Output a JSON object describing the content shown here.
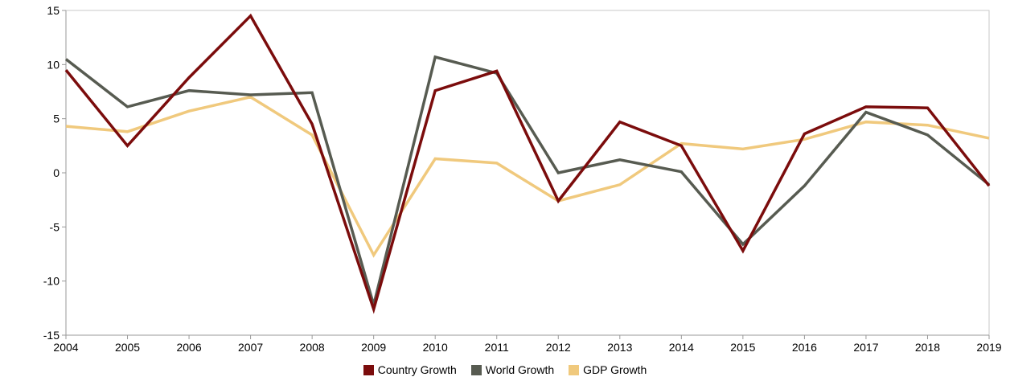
{
  "chart_data": {
    "type": "line",
    "title": "",
    "xlabel": "",
    "ylabel": "",
    "x": [
      "2004",
      "2005",
      "2006",
      "2007",
      "2008",
      "2009",
      "2010",
      "2011",
      "2012",
      "2013",
      "2014",
      "2015",
      "2016",
      "2017",
      "2018",
      "2019"
    ],
    "ylim": [
      -15,
      15
    ],
    "yticks": [
      "15",
      "10",
      "5",
      "0",
      "-5",
      "-10",
      "-15"
    ],
    "grid": false,
    "legend_position": "bottom",
    "series": [
      {
        "name": "Country Growth",
        "color": "#7b0c0c",
        "values": [
          9.5,
          2.5,
          8.8,
          14.5,
          4.5,
          -12.6,
          7.6,
          9.4,
          -2.6,
          4.7,
          2.5,
          -7.2,
          3.6,
          6.1,
          6.0,
          -1.2
        ]
      },
      {
        "name": "World Growth",
        "color": "#575b51",
        "values": [
          10.5,
          6.1,
          7.6,
          7.2,
          7.4,
          -12.2,
          10.7,
          9.2,
          0.0,
          1.2,
          0.1,
          -6.6,
          -1.2,
          5.6,
          3.5,
          -1.1
        ]
      },
      {
        "name": "GDP Growth",
        "color": "#f0c97d",
        "values": [
          4.3,
          3.8,
          5.7,
          7.0,
          3.5,
          -7.6,
          1.3,
          0.9,
          -2.6,
          -1.1,
          2.7,
          2.2,
          3.1,
          4.7,
          4.4,
          3.2
        ]
      }
    ]
  }
}
